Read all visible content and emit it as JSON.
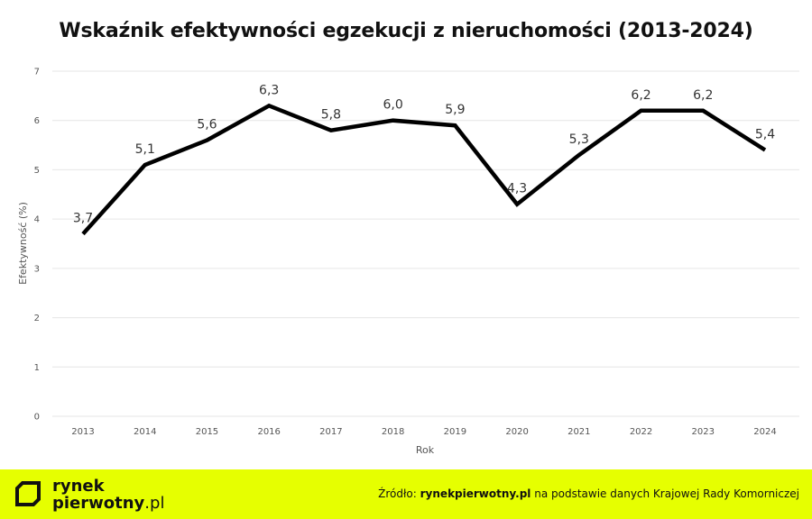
{
  "chart_data": {
    "type": "line",
    "title": "Wskaźnik efektywności egzekucji z nieruchomości (2013-2024)",
    "xlabel": "Rok",
    "ylabel": "Efektywność (%)",
    "x": [
      "2013",
      "2014",
      "2015",
      "2016",
      "2017",
      "2018",
      "2019",
      "2020",
      "2021",
      "2022",
      "2023",
      "2024"
    ],
    "values": [
      3.7,
      5.1,
      5.6,
      6.3,
      5.8,
      6.0,
      5.9,
      4.3,
      5.3,
      6.2,
      6.2,
      5.4
    ],
    "data_labels": [
      "3,7",
      "5,1",
      "5,6",
      "6,3",
      "5,8",
      "6,0",
      "5,9",
      "4,3",
      "5,3",
      "6,2",
      "6,2",
      "5,4"
    ],
    "y_ticks": [
      0,
      1,
      2,
      3,
      4,
      5,
      6,
      7
    ],
    "ylim": [
      0,
      7
    ],
    "grid": true,
    "line_color": "#000000"
  },
  "footer": {
    "brand_line1": "rynek",
    "brand_line2": "pierwotny",
    "brand_suffix": ".pl",
    "source_prefix": "Źródło:",
    "source_site": "rynekpierwotny.pl",
    "source_rest": "na podstawie danych Krajowej Rady Komorniczej",
    "accent_color": "#e6ff00"
  }
}
